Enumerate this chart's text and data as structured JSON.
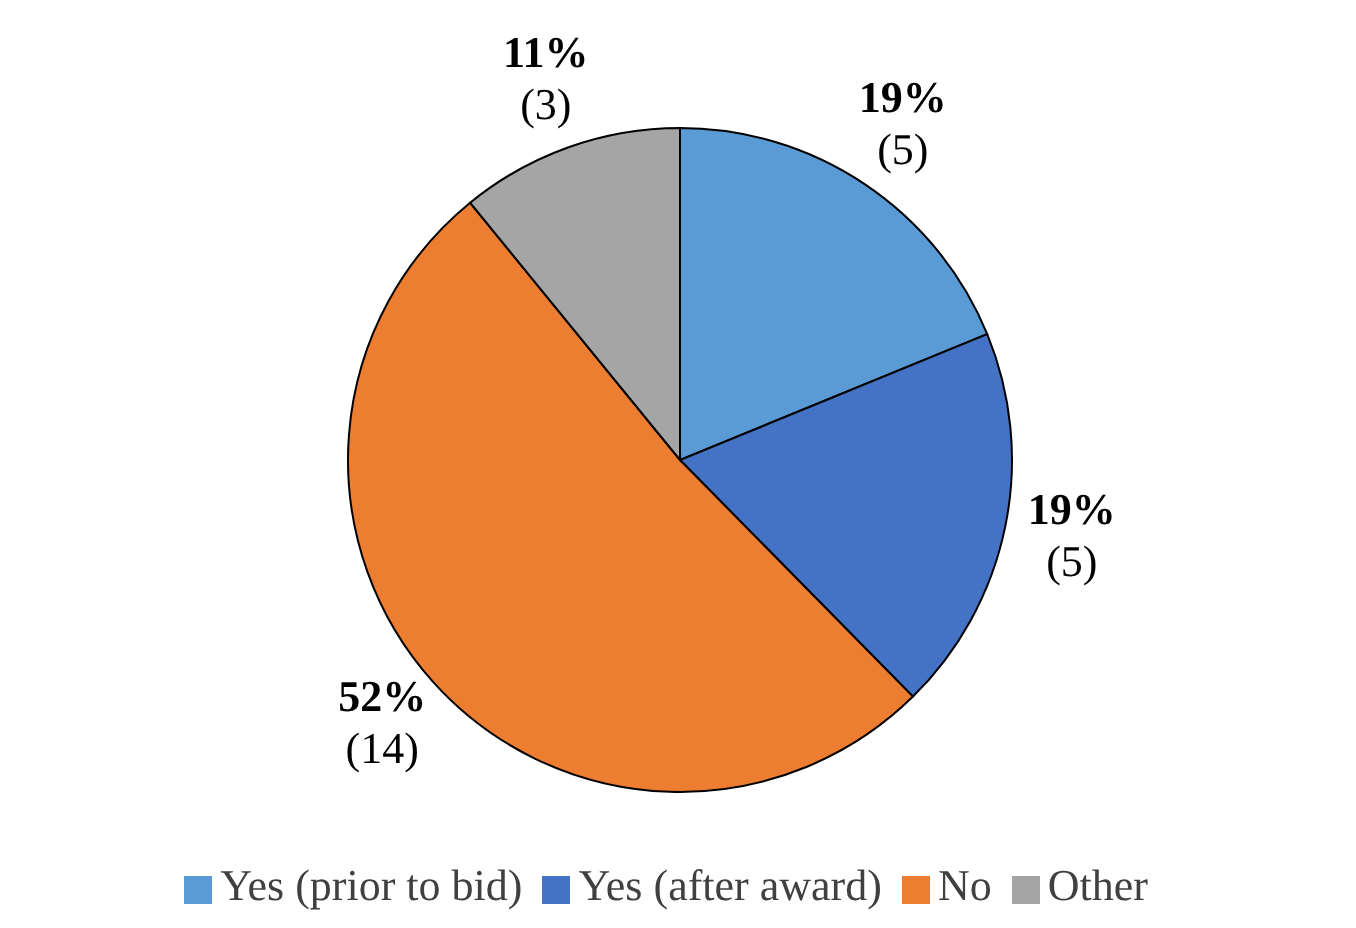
{
  "chart_data": {
    "type": "pie",
    "categories": [
      "Yes (prior to bid)",
      "Yes (after award)",
      "No",
      "Other"
    ],
    "values": [
      19,
      19,
      52,
      11
    ],
    "value_labels": [
      "19%\n(5)",
      "19%\n(5)",
      "52%\n(14)",
      "11%\n(3)"
    ],
    "colors": [
      "#5b9bd5",
      "#4472c4",
      "#ed7d31",
      "#a5a5a5"
    ],
    "legend": "bottom"
  }
}
